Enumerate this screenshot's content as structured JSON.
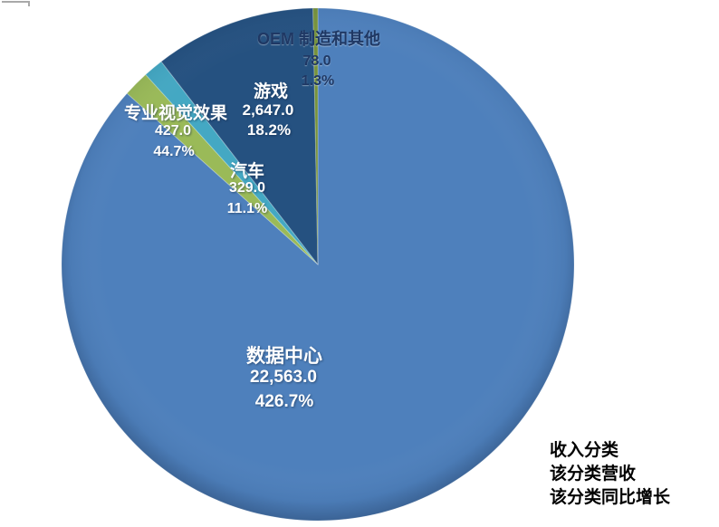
{
  "chart_data": {
    "type": "pie",
    "title": "",
    "start_angle_deg": 0,
    "direction": "clockwise",
    "legend_position": "none",
    "slices": [
      {
        "label": "数据中心",
        "value": 22563.0,
        "value_label": "22,563.0",
        "growth_label": "426.7%",
        "share_pct": 86.6,
        "color": "#4E80BC"
      },
      {
        "label": "专业视觉效果",
        "value": 427.0,
        "value_label": "427.0",
        "growth_label": "44.7%",
        "share_pct": 1.6,
        "color": "#9ABA58"
      },
      {
        "label": "汽车",
        "value": 329.0,
        "value_label": "329.0",
        "growth_label": "11.1%",
        "share_pct": 1.3,
        "color": "#44A8C3"
      },
      {
        "label": "游戏",
        "value": 2647.0,
        "value_label": "2,647.0",
        "growth_label": "18.2%",
        "share_pct": 10.2,
        "color": "#255180"
      },
      {
        "label": "OEM 制造和其他",
        "value": 78.0,
        "value_label": "78.0",
        "growth_label": "1.3%",
        "share_pct": 0.3,
        "color": "#77933C"
      }
    ],
    "label_colors": {
      "on_dark_slices": "#FFFFFF",
      "on_light_slice": "#1F3864"
    },
    "legend_notes": [
      "收入分类",
      "该分类营收",
      "该分类同比增长"
    ]
  }
}
